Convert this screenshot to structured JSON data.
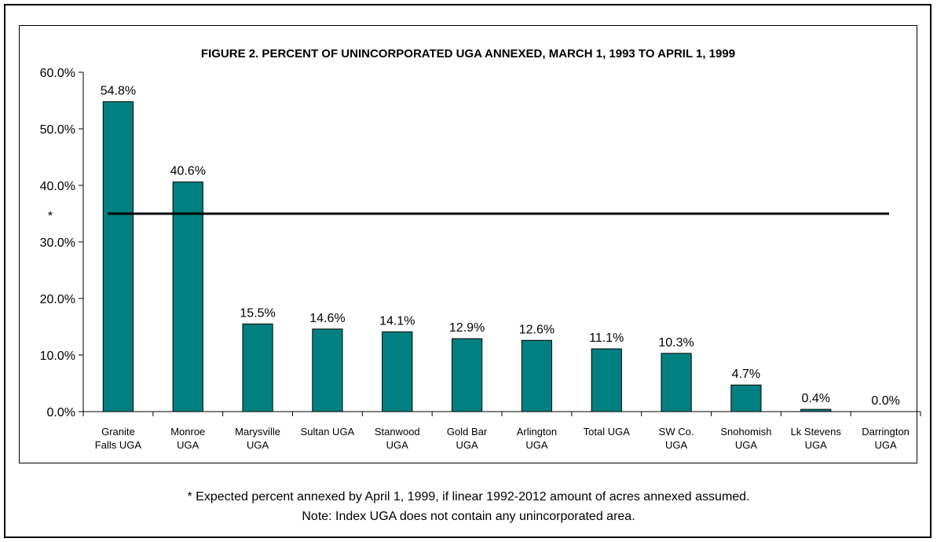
{
  "chart_data": {
    "type": "bar",
    "title": "FIGURE 2. PERCENT OF UNINCORPORATED UGA ANNEXED, MARCH 1, 1993 TO APRIL 1, 1999",
    "categories": [
      [
        "Granite",
        "Falls UGA"
      ],
      [
        "Monroe",
        "UGA"
      ],
      [
        "Marysville",
        "UGA"
      ],
      [
        "Sultan UGA"
      ],
      [
        "Stanwood",
        "UGA"
      ],
      [
        "Gold Bar",
        "UGA"
      ],
      [
        "Arlington",
        "UGA"
      ],
      [
        "Total UGA"
      ],
      [
        "SW Co.",
        "UGA"
      ],
      [
        "Snohomish",
        "UGA"
      ],
      [
        "Lk Stevens",
        "UGA"
      ],
      [
        "Darrington",
        "UGA"
      ]
    ],
    "values": [
      54.8,
      40.6,
      15.5,
      14.6,
      14.1,
      12.9,
      12.6,
      11.1,
      10.3,
      4.7,
      0.4,
      0.0
    ],
    "data_labels": [
      "54.8%",
      "40.6%",
      "15.5%",
      "14.6%",
      "14.1%",
      "12.9%",
      "12.6%",
      "11.1%",
      "10.3%",
      "4.7%",
      "0.4%",
      "0.0%"
    ],
    "ylim": [
      0,
      60
    ],
    "yticks": [
      0,
      10,
      20,
      30,
      40,
      50,
      60
    ],
    "ytick_labels": [
      "0.0%",
      "10.0%",
      "20.0%",
      "30.0%",
      "40.0%",
      "50.0%",
      "60.0%"
    ],
    "reference_line": {
      "value": 35,
      "marker": "*"
    },
    "bar_color": "#008080",
    "grid": false,
    "xlabel": "",
    "ylabel": ""
  },
  "notes": {
    "line1": "* Expected percent annexed by April 1, 1999, if linear 1992-2012 amount of acres annexed assumed.",
    "line2": "Note:  Index UGA does not contain any unincorporated area."
  }
}
